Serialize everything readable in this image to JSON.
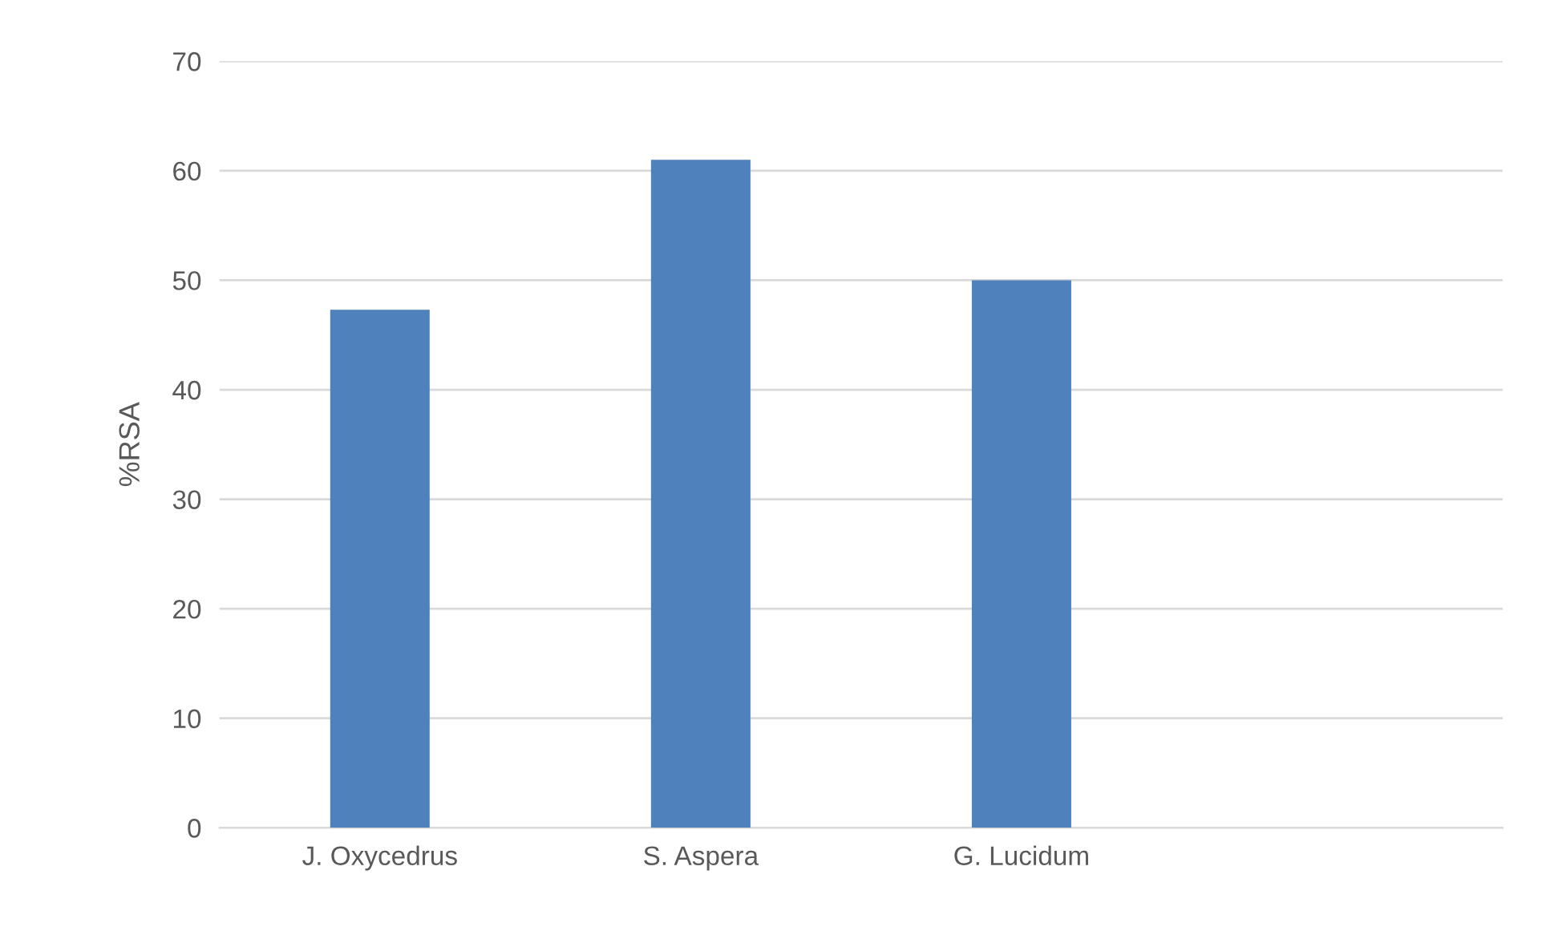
{
  "chart_data": {
    "type": "bar",
    "ylabel": "%RSA",
    "categories": [
      "J. Oxycedrus",
      "S. Aspera",
      "G. Lucidum",
      null
    ],
    "values": [
      47.3,
      61,
      50,
      null
    ],
    "color": "#4f81bd",
    "ylim": [
      0,
      70
    ],
    "yticks": [
      0,
      10,
      20,
      30,
      40,
      50,
      60,
      70
    ],
    "grid": "y",
    "legend": false
  }
}
